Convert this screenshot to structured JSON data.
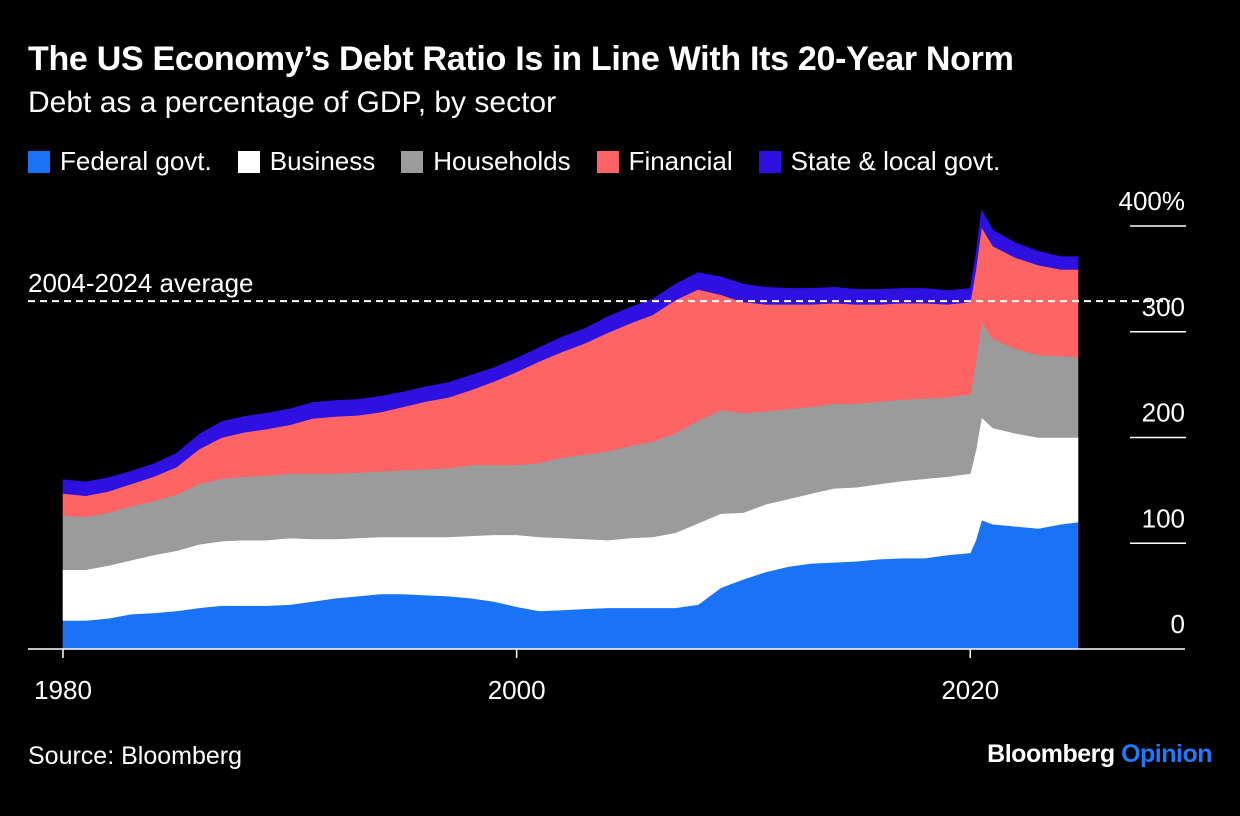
{
  "header": {
    "title": "The US Economy’s Debt Ratio Is in Line With Its 20-Year Norm",
    "subtitle": "Debt as a percentage of GDP, by sector"
  },
  "footer": {
    "source": "Source: Bloomberg",
    "brand_primary": "Bloomberg",
    "brand_accent": "Opinion"
  },
  "colors": {
    "background": "#000000",
    "federal": "#1a73f5",
    "business": "#ffffff",
    "households": "#9b9b9b",
    "financial": "#ff6464",
    "state_local": "#2e10e0",
    "brand_accent": "#1e7bff"
  },
  "chart_data": {
    "type": "area",
    "stacked": true,
    "title": "The US Economy’s Debt Ratio Is in Line With Its 20-Year Norm",
    "subtitle": "Debt as a percentage of GDP, by sector",
    "legend_position": "top-left",
    "grid": false,
    "xlim": [
      1980,
      2024.75
    ],
    "ylim": [
      0,
      400
    ],
    "x_ticks": [
      "1980",
      "2000",
      "2020"
    ],
    "y_ticks": [
      "400%",
      "300",
      "200",
      "100",
      "0"
    ],
    "y_tick_values": [
      400,
      300,
      200,
      100,
      0
    ],
    "reference_line": {
      "label": "2004-2024 average",
      "value": 329
    },
    "x": [
      1980,
      1981,
      1982,
      1983,
      1984,
      1985,
      1986,
      1987,
      1988,
      1989,
      1990,
      1991,
      1992,
      1993,
      1994,
      1995,
      1996,
      1997,
      1998,
      1999,
      2000,
      2001,
      2002,
      2003,
      2004,
      2005,
      2006,
      2007,
      2008,
      2009,
      2010,
      2011,
      2012,
      2013,
      2014,
      2015,
      2016,
      2017,
      2018,
      2019,
      2020,
      2020.25,
      2020.5,
      2021,
      2022,
      2023,
      2024,
      2024.75
    ],
    "series": [
      {
        "name": "Federal govt.",
        "color": "#1a73f5",
        "values": [
          27,
          27,
          29,
          33,
          34,
          36,
          39,
          41,
          41,
          41,
          42,
          45,
          48,
          50,
          52,
          52,
          51,
          50,
          48,
          45,
          40,
          36,
          37,
          38,
          39,
          39,
          39,
          39,
          42,
          58,
          66,
          73,
          78,
          81,
          82,
          83,
          85,
          86,
          86,
          89,
          91,
          103,
          122,
          118,
          116,
          114,
          118,
          120
        ]
      },
      {
        "name": "Business",
        "color": "#ffffff",
        "values": [
          48,
          48,
          50,
          51,
          55,
          57,
          60,
          61,
          62,
          62,
          63,
          59,
          56,
          55,
          54,
          54,
          55,
          56,
          59,
          63,
          68,
          70,
          68,
          66,
          64,
          66,
          67,
          71,
          77,
          70,
          63,
          64,
          64,
          66,
          70,
          70,
          71,
          73,
          75,
          74,
          75,
          85,
          97,
          91,
          88,
          86,
          82,
          80
        ]
      },
      {
        "name": "Households",
        "color": "#9b9b9b",
        "values": [
          51,
          50,
          50,
          51,
          51,
          53,
          57,
          59,
          60,
          61,
          61,
          62,
          62,
          62,
          62,
          63,
          64,
          65,
          67,
          66,
          66,
          70,
          76,
          80,
          84,
          87,
          90,
          94,
          97,
          98,
          94,
          88,
          85,
          82,
          80,
          79,
          78,
          77,
          76,
          75,
          75,
          84,
          90,
          84,
          80,
          78,
          77,
          76
        ]
      },
      {
        "name": "Financial",
        "color": "#ff6464",
        "values": [
          21,
          20,
          20,
          21,
          23,
          26,
          33,
          39,
          42,
          44,
          46,
          52,
          54,
          54,
          56,
          60,
          64,
          67,
          71,
          79,
          88,
          96,
          100,
          105,
          112,
          116,
          120,
          126,
          124,
          109,
          105,
          101,
          99,
          97,
          95,
          94,
          92,
          91,
          90,
          88,
          87,
          87,
          90,
          88,
          86,
          85,
          82,
          83
        ]
      },
      {
        "name": "State & local govt.",
        "color": "#2e10e0",
        "values": [
          13,
          13,
          13,
          12,
          12,
          13,
          14,
          15,
          15,
          15,
          15,
          15,
          15,
          15,
          15,
          14,
          14,
          14,
          14,
          13,
          13,
          13,
          14,
          14,
          15,
          15,
          15,
          15,
          16,
          17,
          17,
          16,
          15,
          15,
          15,
          14,
          14,
          14,
          14,
          13,
          13,
          14,
          16,
          15,
          14,
          13,
          12,
          12
        ]
      }
    ]
  }
}
